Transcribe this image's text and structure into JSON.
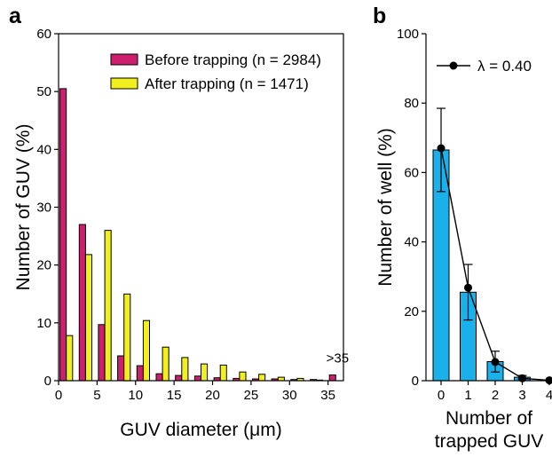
{
  "panels": {
    "a": {
      "letter": "a"
    },
    "b": {
      "letter": "b"
    }
  },
  "chart_data": [
    {
      "type": "bar",
      "panel": "a",
      "xlabel": "GUV diameter (μm)",
      "ylabel": "Number of GUV (%)",
      "xlim": [
        0,
        37
      ],
      "ylim": [
        0,
        60
      ],
      "xticks": [
        "0",
        "5",
        "10",
        "15",
        "20",
        "25",
        "30",
        "35"
      ],
      "yticks": [
        "0",
        "10",
        "20",
        "30",
        "40",
        "50",
        "60"
      ],
      "x": [
        1,
        3.5,
        6,
        8.5,
        11,
        13.5,
        16,
        18.5,
        21,
        23.5,
        26,
        28.5,
        31,
        33.5,
        36
      ],
      "series": [
        {
          "name": "Before trapping (n = 2984)",
          "color": "#cc1f6e",
          "values": [
            50.5,
            27.0,
            9.7,
            4.3,
            2.6,
            1.2,
            0.9,
            0.8,
            0.5,
            0.4,
            0.3,
            0.3,
            0.2,
            0.2,
            1.0
          ]
        },
        {
          "name": "After trapping (n = 1471)",
          "color": "#f2ef1f",
          "values": [
            7.8,
            21.8,
            26.0,
            15.0,
            10.4,
            5.8,
            4.0,
            2.9,
            2.7,
            1.5,
            1.1,
            0.6,
            0.4,
            0.1,
            0.0
          ]
        }
      ],
      "annotation": ">35",
      "legend_position": "top-right",
      "grid": false
    },
    {
      "type": "bar",
      "panel": "b",
      "xlabel_lines": [
        "Number of",
        "trapped GUV"
      ],
      "ylabel": "Number of well (%)",
      "ylim": [
        0,
        100
      ],
      "categories": [
        "0",
        "1",
        "2",
        "3",
        "4"
      ],
      "yticks": [
        "0",
        "20",
        "40",
        "60",
        "80",
        "100"
      ],
      "bars": {
        "color": "#1ab0ea",
        "values": [
          66.5,
          25.5,
          5.5,
          1.0,
          0.0
        ],
        "errors": [
          12,
          8,
          3,
          0.5,
          0
        ]
      },
      "line": {
        "name": "λ = 0.40",
        "values": [
          67.0,
          26.8,
          5.4,
          0.7,
          0.1
        ]
      },
      "legend_position": "top-right",
      "grid": false
    }
  ]
}
